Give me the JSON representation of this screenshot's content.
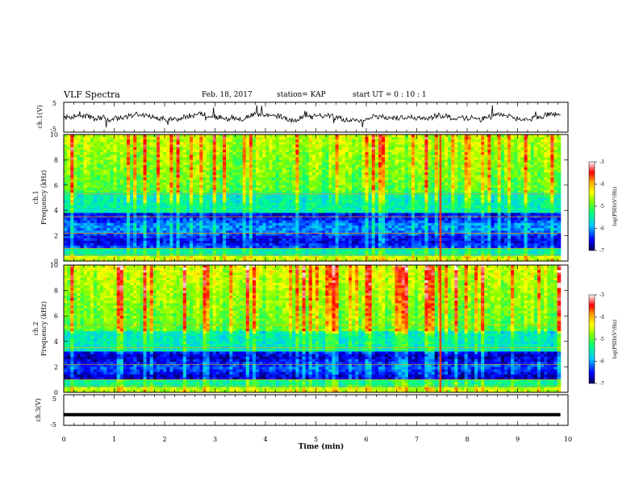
{
  "header": {
    "title": "VLF Spectra",
    "date": "Feb. 18, 2017",
    "station": "station= KAP",
    "start": "start  UT =   0  : 10 : 1"
  },
  "chart_data": [
    {
      "type": "line",
      "id": "ch1-voltage",
      "ylabel": "ch.1(V)",
      "ylim": [
        -5,
        5
      ],
      "yticks": [
        "5",
        "-5"
      ],
      "xlim": [
        0,
        10
      ],
      "trace": "noisy waveform oscillating between about -2 V and 2 V"
    },
    {
      "type": "heatmap",
      "id": "ch1-spectrogram",
      "ylabel_line1": "ch.1",
      "ylabel_line2": "Frequency (kHz)",
      "ylim": [
        0,
        10
      ],
      "yticks": [
        "0",
        "2",
        "4",
        "6",
        "8",
        "10"
      ],
      "xlim": [
        0,
        9.85
      ],
      "colorbar": {
        "label": "log(PSD)(V²/Hz)",
        "range": [
          -7,
          -3
        ],
        "ticks": [
          "-3",
          "-4",
          "-5",
          "-6",
          "-7"
        ]
      }
    },
    {
      "type": "heatmap",
      "id": "ch2-spectrogram",
      "ylabel_line1": "ch.2",
      "ylabel_line2": "Frequency (kHz)",
      "ylim": [
        0,
        10
      ],
      "yticks": [
        "0",
        "2",
        "4",
        "6",
        "8",
        "10"
      ],
      "xlim": [
        0,
        9.85
      ],
      "colorbar": {
        "label": "log(PSD)(V²/Hz)",
        "range": [
          -7,
          -3
        ],
        "ticks": [
          "-3",
          "-4",
          "-5",
          "-6",
          "-7"
        ]
      }
    },
    {
      "type": "line",
      "id": "ch3-voltage",
      "ylabel": "ch.3(V)",
      "ylim": [
        -5,
        5
      ],
      "yticks": [
        "5",
        "-5"
      ],
      "xlim": [
        0,
        9.85
      ],
      "y_constant": -1.5
    }
  ],
  "xaxis": {
    "label": "Time  (min)",
    "ticks": [
      "0",
      "1",
      "2",
      "3",
      "4",
      "5",
      "6",
      "7",
      "8",
      "9",
      "10"
    ],
    "range": [
      0,
      10
    ]
  },
  "colors": {
    "scale": [
      "#000080",
      "#0000ff",
      "#00c8ff",
      "#00ff80",
      "#80ff00",
      "#ffff00",
      "#ffa000",
      "#ff0000",
      "#ffffff"
    ]
  }
}
